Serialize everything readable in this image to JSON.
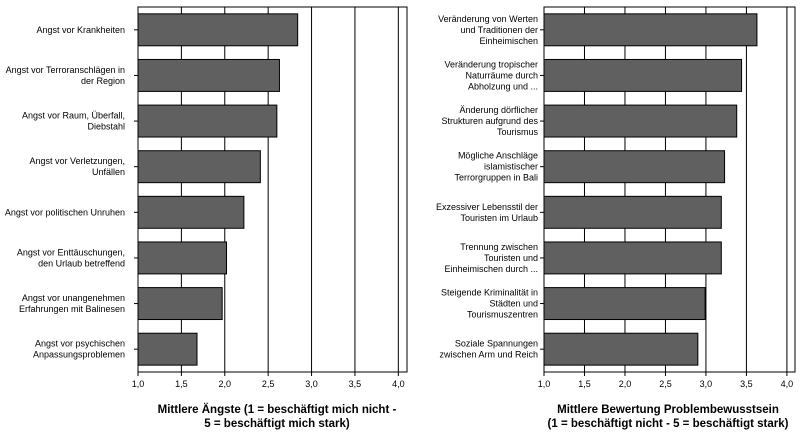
{
  "chart_data": [
    {
      "type": "bar",
      "orientation": "horizontal",
      "categories": [
        [
          "Angst vor Krankheiten"
        ],
        [
          "Angst vor Terroranschlägen in",
          "der Region"
        ],
        [
          "Angst vor Raum, Überfall,",
          "Diebstahl"
        ],
        [
          "Angst vor Verletzungen,",
          "Unfällen"
        ],
        [
          "Angst vor politischen Unruhen"
        ],
        [
          "Angst vor Enttäuschungen,",
          "den Urlaub betreffend"
        ],
        [
          "Angst vor unangenehmen",
          "Erfahrungen mit Balinesen"
        ],
        [
          "Angst vor psychischen",
          "Anpassungsproblemen"
        ]
      ],
      "values": [
        2.84,
        2.63,
        2.6,
        2.41,
        2.22,
        2.02,
        1.97,
        1.68
      ],
      "xlabel": [
        "Mittlere Ängste (1 = beschäftigt mich nicht -",
        "5 = beschäftigt mich stark)"
      ],
      "ticks": [
        "1,0",
        "1,5",
        "2,0",
        "2,5",
        "3,0",
        "3,5",
        "4,0"
      ],
      "xlim": [
        1.0,
        4.1
      ],
      "grid": true,
      "bar_color": "#606060"
    },
    {
      "type": "bar",
      "orientation": "horizontal",
      "categories": [
        [
          "Veränderung von Werten",
          "und Traditionen der",
          "Einheimischen"
        ],
        [
          "Veränderung tropischer",
          "Naturräume durch",
          "Abholzung und ..."
        ],
        [
          "Änderung dörflicher",
          "Strukturen aufgrund des",
          "Tourismus"
        ],
        [
          "Mögliche Anschläge",
          "islamistischer",
          "Terrorgruppen in Bali"
        ],
        [
          "Exzessiver Lebensstil der",
          "Touristen im Urlaub"
        ],
        [
          "Trennung zwischen",
          "Touristen und",
          "Einheimischen durch ..."
        ],
        [
          "Steigende Kriminalität in",
          "Städten und",
          "Tourismuszentren"
        ],
        [
          "Soziale Spannungen",
          "zwischen Arm und Reich"
        ]
      ],
      "values": [
        3.63,
        3.44,
        3.38,
        3.23,
        3.19,
        3.19,
        2.99,
        2.9
      ],
      "xlabel": [
        "Mittlere Bewertung Problembewusstsein",
        "(1 = beschäftigt nicht - 5 = beschäftigt stark)"
      ],
      "ticks": [
        "1,0",
        "1,5",
        "2,0",
        "2,5",
        "3,0",
        "3,5",
        "4,0"
      ],
      "xlim": [
        1.0,
        4.1
      ],
      "grid": true,
      "bar_color": "#606060"
    }
  ]
}
